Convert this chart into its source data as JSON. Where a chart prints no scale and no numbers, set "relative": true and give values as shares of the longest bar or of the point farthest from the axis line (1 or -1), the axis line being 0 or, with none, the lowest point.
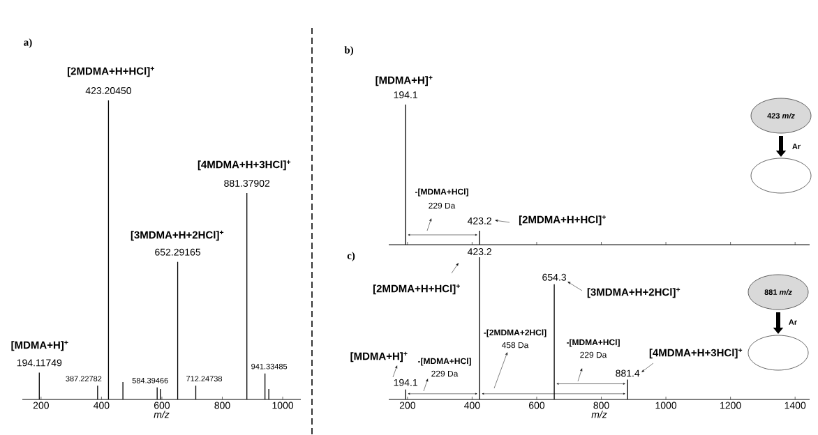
{
  "chart_data": [
    {
      "type": "bar",
      "title": "a)",
      "xlabel": "m/z",
      "relative": true,
      "color": "#000000",
      "xlim": [
        138,
        1060
      ],
      "xticks": [
        200,
        400,
        600,
        800,
        1000
      ],
      "x": [
        194.11749,
        387.22782,
        423.2045,
        471,
        584.39466,
        595,
        652.29165,
        712.24738,
        881.37902,
        941.33485,
        954
      ],
      "values": [
        0.09,
        0.046,
        1,
        0.058,
        0.04,
        0.035,
        0.46,
        0.046,
        0.69,
        0.087,
        0.035
      ],
      "annotations": [
        "[MDMA+H]$^{+}$",
        "[2MDMA+H+HCl]$^{+}$",
        "[3MDMA+H+2HCl]$^{+}$",
        "[4MDMA+H+3HCl]$^{+}$",
        {
          "text": "194.11749",
          "x": 194.11749,
          "y": 0.09
        },
        {
          "text": "387.22782",
          "x": 387.22782,
          "y": 0.046
        },
        {
          "text": "423.20450",
          "x": 423.2045,
          "y": 1
        },
        {
          "text": "584.39466",
          "x": 584.39466,
          "y": 0.04
        },
        {
          "text": "652.29165",
          "x": 652.29165,
          "y": 0.46
        },
        {
          "text": "712.24738",
          "x": 712.24738,
          "y": 0.046
        },
        {
          "text": "881.37902",
          "x": 881.37902,
          "y": 0.69
        },
        {
          "text": "941.33485",
          "x": 941.33485,
          "y": 0.087
        }
      ]
    },
    {
      "type": "bar",
      "title": "b)",
      "relative": true,
      "color": "#000000",
      "xlim": [
        142,
        1445
      ],
      "xticks": [
        200,
        400,
        600,
        800,
        1000,
        1200,
        1400
      ],
      "tick_labels": false,
      "x": [
        194.1,
        423.2
      ],
      "values": [
        1,
        0.1
      ],
      "annotations": [
        "[MDMA+H]$^{+}$",
        "[2MDMA+H+HCl]$^{+}$",
        "-[MDMA+HCl]",
        "229 Da",
        "423 *m/z*",
        "Ar",
        {
          "text": "194.1",
          "x": 194.1,
          "y": 1
        },
        {
          "text": "423.2",
          "x": 423.2,
          "y": 0.1
        }
      ]
    },
    {
      "type": "bar",
      "title": "c)",
      "xlabel": "m/z",
      "relative": true,
      "color": "#000000",
      "xlim": [
        142,
        1445
      ],
      "xticks": [
        200,
        400,
        600,
        800,
        1000,
        1200,
        1400
      ],
      "x": [
        194.1,
        423.2,
        654.3,
        881.4
      ],
      "values": [
        0.07,
        1,
        0.81,
        0.14
      ],
      "annotations": [
        "[MDMA+H]$^{+}$",
        "[2MDMA+H+HCl]$^{+}$",
        "[3MDMA+H+2HCl]$^{+}$",
        "[4MDMA+H+3HCl]$^{+}$",
        "-[MDMA+HCl]",
        "229 Da",
        "-[2MDMA+2HCl]",
        "458 Da",
        "-[MDMA+HCl]",
        "229 Da",
        "881 *m/z*",
        "Ar",
        {
          "text": "194.1",
          "x": 194.1,
          "y": 0.07
        },
        {
          "text": "423.2",
          "x": 423.2,
          "y": 1
        },
        {
          "text": "654.3",
          "x": 654.3,
          "y": 0.81
        },
        {
          "text": "881.4",
          "x": 881.4,
          "y": 0.14
        }
      ]
    }
  ]
}
